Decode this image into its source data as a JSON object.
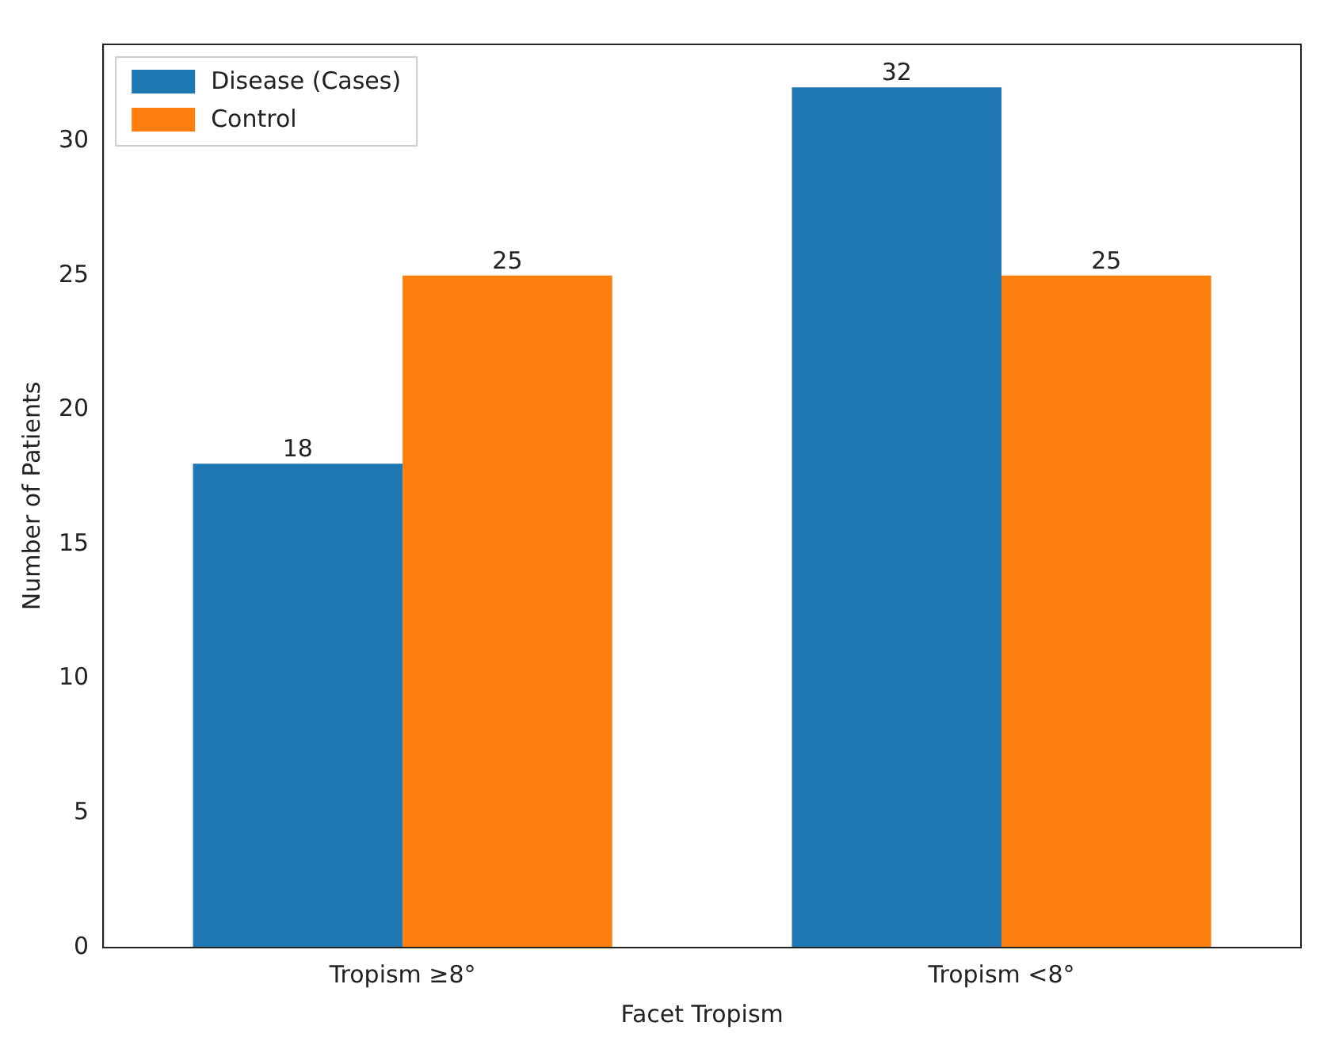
{
  "chart_data": {
    "type": "bar",
    "xlabel": "Facet Tropism",
    "ylabel": "Number of Patients",
    "categories": [
      "Tropism ≥8°",
      "Tropism <8°"
    ],
    "series": [
      {
        "name": "Disease (Cases)",
        "color": "#1f77b4",
        "values": [
          18,
          32
        ]
      },
      {
        "name": "Control",
        "color": "#ff7f0e",
        "values": [
          25,
          25
        ]
      }
    ],
    "ylim": [
      0,
      33.6
    ],
    "yticks": [
      0,
      5,
      10,
      15,
      20,
      25,
      30
    ],
    "grid": false,
    "legend": "top left",
    "data_labels": true
  }
}
